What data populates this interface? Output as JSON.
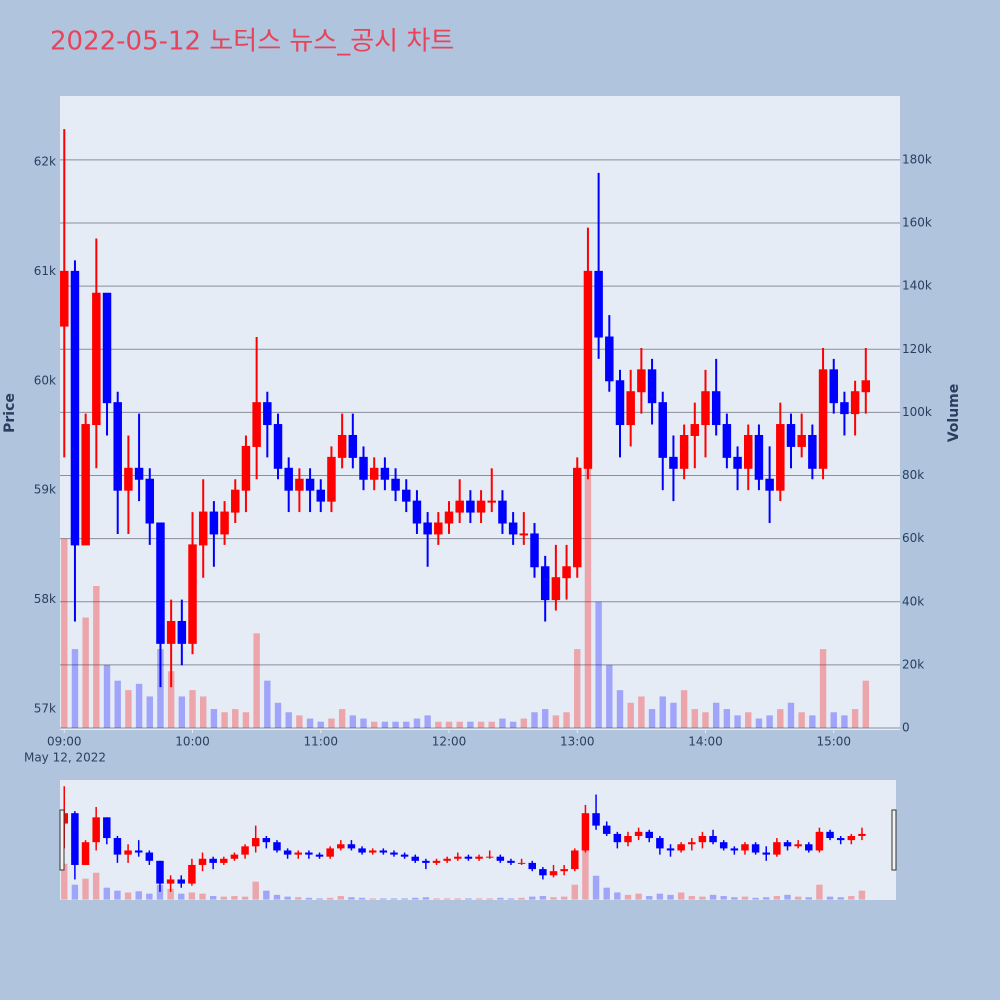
{
  "chart_data": {
    "type": "candlestick",
    "title": "2022-05-12 노터스 뉴스_공시 차트",
    "ylabel": "Price",
    "y2label": "Volume",
    "x_date_label": "May 12, 2022",
    "increasing_color": "#ff0000",
    "decreasing_color": "#0000ff",
    "x": [
      "2022-05-12 09:00",
      "2022-05-12 09:05",
      "2022-05-12 09:10",
      "2022-05-12 09:15",
      "2022-05-12 09:20",
      "2022-05-12 09:25",
      "2022-05-12 09:30",
      "2022-05-12 09:35",
      "2022-05-12 09:40",
      "2022-05-12 09:45",
      "2022-05-12 09:50",
      "2022-05-12 09:55",
      "2022-05-12 10:00",
      "2022-05-12 10:05",
      "2022-05-12 10:10",
      "2022-05-12 10:15",
      "2022-05-12 10:20",
      "2022-05-12 10:25",
      "2022-05-12 10:30",
      "2022-05-12 10:35",
      "2022-05-12 10:40",
      "2022-05-12 10:45",
      "2022-05-12 10:50",
      "2022-05-12 10:55",
      "2022-05-12 11:00",
      "2022-05-12 11:05",
      "2022-05-12 11:10",
      "2022-05-12 11:15",
      "2022-05-12 11:20",
      "2022-05-12 11:25",
      "2022-05-12 11:30",
      "2022-05-12 11:35",
      "2022-05-12 11:40",
      "2022-05-12 11:45",
      "2022-05-12 11:50",
      "2022-05-12 11:55",
      "2022-05-12 12:00",
      "2022-05-12 12:05",
      "2022-05-12 12:10",
      "2022-05-12 12:15",
      "2022-05-12 12:20",
      "2022-05-12 12:25",
      "2022-05-12 12:30",
      "2022-05-12 12:35",
      "2022-05-12 12:40",
      "2022-05-12 12:45",
      "2022-05-12 12:50",
      "2022-05-12 12:55",
      "2022-05-12 13:00",
      "2022-05-12 13:05",
      "2022-05-12 13:10",
      "2022-05-12 13:15",
      "2022-05-12 13:20",
      "2022-05-12 13:25",
      "2022-05-12 13:30",
      "2022-05-12 13:35",
      "2022-05-12 13:40",
      "2022-05-12 13:45",
      "2022-05-12 13:50",
      "2022-05-12 13:55",
      "2022-05-12 14:00",
      "2022-05-12 14:05",
      "2022-05-12 14:10",
      "2022-05-12 14:15",
      "2022-05-12 14:20",
      "2022-05-12 14:25",
      "2022-05-12 14:30",
      "2022-05-12 14:35",
      "2022-05-12 14:40",
      "2022-05-12 14:45",
      "2022-05-12 14:50",
      "2022-05-12 14:55",
      "2022-05-12 15:00",
      "2022-05-12 15:05",
      "2022-05-12 15:10",
      "2022-05-12 15:15"
    ],
    "open": [
      60500,
      61000,
      58500,
      59600,
      60800,
      59800,
      59000,
      59200,
      59100,
      58700,
      57600,
      57800,
      57600,
      58500,
      58800,
      58600,
      58800,
      59000,
      59400,
      59800,
      59600,
      59200,
      59000,
      59100,
      59000,
      58900,
      59300,
      59500,
      59300,
      59100,
      59200,
      59100,
      59000,
      58900,
      58700,
      58600,
      58700,
      58800,
      58900,
      58800,
      58900,
      58900,
      58700,
      58600,
      58600,
      58300,
      58000,
      58200,
      58300,
      59200,
      61000,
      60400,
      60000,
      59600,
      59900,
      60100,
      59800,
      59300,
      59200,
      59500,
      59600,
      59900,
      59600,
      59300,
      59200,
      59500,
      59100,
      59000,
      59600,
      59400,
      59500,
      59200,
      60100,
      59800,
      59700,
      59900
    ],
    "high": [
      62300,
      61100,
      59700,
      61300,
      60800,
      59900,
      59500,
      59700,
      59200,
      58700,
      58000,
      58000,
      58800,
      59100,
      58900,
      58900,
      59100,
      59500,
      60400,
      59900,
      59700,
      59300,
      59200,
      59200,
      59100,
      59400,
      59700,
      59700,
      59400,
      59300,
      59300,
      59200,
      59100,
      59000,
      58800,
      58800,
      58900,
      59100,
      59000,
      59000,
      59200,
      59000,
      58800,
      58800,
      58700,
      58400,
      58500,
      58500,
      59300,
      61400,
      61900,
      60600,
      60100,
      60100,
      60300,
      60200,
      59900,
      59500,
      59600,
      59800,
      60100,
      60200,
      59700,
      59400,
      59600,
      59600,
      59400,
      59800,
      59700,
      59700,
      59600,
      60300,
      60200,
      59900,
      60000,
      60300
    ],
    "low": [
      59300,
      57800,
      58500,
      59200,
      59500,
      58600,
      58600,
      58900,
      58500,
      57200,
      57200,
      57400,
      57500,
      58200,
      58300,
      58500,
      58700,
      58800,
      59100,
      59300,
      59100,
      58800,
      58800,
      58800,
      58800,
      58800,
      59200,
      59200,
      59000,
      59000,
      59000,
      58900,
      58800,
      58600,
      58300,
      58500,
      58600,
      58700,
      58700,
      58700,
      58800,
      58600,
      58500,
      58500,
      58200,
      57800,
      57900,
      58000,
      58200,
      59100,
      60200,
      59900,
      59300,
      59400,
      59700,
      59600,
      59000,
      58900,
      59100,
      59200,
      59300,
      59500,
      59200,
      59000,
      59000,
      59000,
      58700,
      58900,
      59200,
      59300,
      59100,
      59100,
      59700,
      59500,
      59500,
      59700
    ],
    "close": [
      61000,
      58500,
      59600,
      60800,
      59800,
      59000,
      59200,
      59100,
      58700,
      57600,
      57800,
      57600,
      58500,
      58800,
      58600,
      58800,
      59000,
      59400,
      59800,
      59600,
      59200,
      59000,
      59100,
      59000,
      58900,
      59300,
      59500,
      59300,
      59100,
      59200,
      59100,
      59000,
      58900,
      58700,
      58600,
      58700,
      58800,
      58900,
      58800,
      58900,
      58900,
      58700,
      58600,
      58600,
      58300,
      58000,
      58200,
      58300,
      59200,
      61000,
      60400,
      60000,
      59600,
      59900,
      60100,
      59800,
      59300,
      59200,
      59500,
      59600,
      59900,
      59600,
      59300,
      59200,
      59500,
      59100,
      59000,
      59600,
      59400,
      59500,
      59200,
      60100,
      59800,
      59700,
      59900,
      60000
    ],
    "volume": [
      60000,
      25000,
      35000,
      45000,
      20000,
      15000,
      12000,
      14000,
      10000,
      25000,
      18000,
      10000,
      12000,
      10000,
      6000,
      5000,
      6000,
      5000,
      30000,
      15000,
      8000,
      5000,
      4000,
      3000,
      2000,
      3000,
      6000,
      4000,
      3000,
      2000,
      2000,
      2000,
      2000,
      3000,
      4000,
      2000,
      2000,
      2000,
      2000,
      2000,
      2000,
      3000,
      2000,
      3000,
      5000,
      6000,
      4000,
      5000,
      25000,
      90000,
      40000,
      20000,
      12000,
      8000,
      10000,
      6000,
      10000,
      8000,
      12000,
      6000,
      5000,
      8000,
      6000,
      4000,
      5000,
      3000,
      4000,
      6000,
      8000,
      5000,
      4000,
      25000,
      5000,
      4000,
      6000,
      15000
    ],
    "xlim": [
      "2022-05-12 08:58",
      "2022-05-12 15:31"
    ],
    "xticks": [
      {
        "value": "2022-05-12 09:00",
        "label": "09:00"
      },
      {
        "value": "2022-05-12 10:00",
        "label": "10:00"
      },
      {
        "value": "2022-05-12 11:00",
        "label": "11:00"
      },
      {
        "value": "2022-05-12 12:00",
        "label": "12:00"
      },
      {
        "value": "2022-05-12 13:00",
        "label": "13:00"
      },
      {
        "value": "2022-05-12 14:00",
        "label": "14:00"
      },
      {
        "value": "2022-05-12 15:00",
        "label": "15:00"
      }
    ],
    "ylim": [
      56808,
      62603
    ],
    "yticks": [
      {
        "value": 57000,
        "label": "57k"
      },
      {
        "value": 58000,
        "label": "58k"
      },
      {
        "value": 59000,
        "label": "59k"
      },
      {
        "value": 60000,
        "label": "60k"
      },
      {
        "value": 61000,
        "label": "61k"
      },
      {
        "value": 62000,
        "label": "62k"
      }
    ],
    "y2lim": [
      -630,
      200250
    ],
    "y2ticks": [
      0,
      {
        "value": 20000,
        "label": "20k"
      },
      {
        "value": 40000,
        "label": "40k"
      },
      {
        "value": 60000,
        "label": "60k"
      },
      {
        "value": 80000,
        "label": "80k"
      },
      {
        "value": 100000,
        "label": "100k"
      },
      {
        "value": 120000,
        "label": "120k"
      },
      {
        "value": 140000,
        "label": "140k"
      },
      {
        "value": 160000,
        "label": "160k"
      },
      {
        "value": 180000,
        "label": "180k"
      }
    ],
    "grid": true,
    "rangeslider": true
  }
}
